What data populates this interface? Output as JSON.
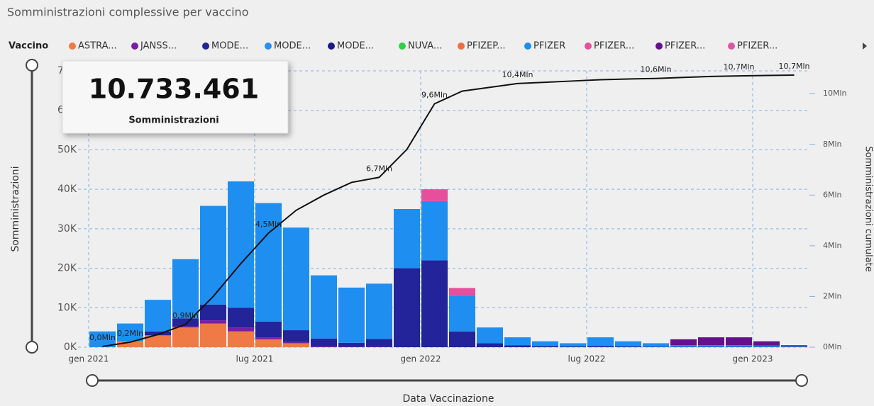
{
  "chart_data": {
    "type": "bar",
    "stacked": true,
    "title": "Somministrazioni complessive per vaccino",
    "legend_title": "Vaccino",
    "x_label": "Data Vaccinazione",
    "y_label": "Somministrazioni",
    "y2_label": "Somministrazioni cumulate",
    "card": {
      "value": "10.733.461",
      "label": "Somministrazioni"
    },
    "categories": [
      "gen 2021",
      null,
      null,
      null,
      null,
      null,
      "lug 2021",
      null,
      null,
      null,
      null,
      null,
      "gen 2022",
      null,
      null,
      null,
      null,
      null,
      "lug 2022",
      null,
      null,
      null,
      null,
      null,
      "gen 2023",
      null
    ],
    "ylim": [
      0,
      70000
    ],
    "yticks": [
      {
        "value": 0,
        "label": "0K"
      },
      {
        "value": 10000,
        "label": "10K"
      },
      {
        "value": 20000,
        "label": "20K"
      },
      {
        "value": 30000,
        "label": "30K"
      },
      {
        "value": 40000,
        "label": "40K"
      },
      {
        "value": 50000,
        "label": "50K"
      },
      {
        "value": 60000,
        "label": "60K"
      },
      {
        "value": 70000,
        "label": "70K"
      }
    ],
    "y2lim": [
      0,
      10900000
    ],
    "y2ticks": [
      {
        "value": 0,
        "label": "0Mln"
      },
      {
        "value": 2000000,
        "label": "2Mln"
      },
      {
        "value": 4000000,
        "label": "4Mln"
      },
      {
        "value": 6000000,
        "label": "6Mln"
      },
      {
        "value": 8000000,
        "label": "8Mln"
      },
      {
        "value": 10000000,
        "label": "10Mln"
      }
    ],
    "grid": true,
    "series": [
      {
        "name": "ASTRA...",
        "color": "#ef7a45",
        "values": [
          0,
          1500,
          3000,
          5000,
          6000,
          4000,
          2000,
          1000,
          0,
          0,
          0,
          0,
          0,
          0,
          0,
          0,
          0,
          0,
          0,
          0,
          0,
          0,
          0,
          0,
          0,
          0
        ]
      },
      {
        "name": "JANSS...",
        "color": "#7a1fa0",
        "values": [
          0,
          0,
          0,
          300,
          800,
          1000,
          500,
          300,
          200,
          100,
          100,
          0,
          0,
          0,
          0,
          0,
          0,
          0,
          0,
          0,
          0,
          0,
          0,
          0,
          0,
          0
        ]
      },
      {
        "name": "MODE...",
        "color": "#23239a",
        "values": [
          0,
          0,
          1000,
          2000,
          4000,
          5000,
          4000,
          3000,
          2000,
          1000,
          2000,
          20000,
          22000,
          4000,
          1000,
          500,
          300,
          200,
          300,
          200,
          100,
          100,
          100,
          100,
          100,
          0
        ]
      },
      {
        "name": "MODE...",
        "color": "#2b8fee",
        "values": [
          0,
          0,
          0,
          0,
          0,
          0,
          0,
          0,
          0,
          0,
          0,
          0,
          0,
          0,
          0,
          0,
          0,
          0,
          0,
          0,
          0,
          0,
          0,
          0,
          0,
          0
        ]
      },
      {
        "name": "MODE...",
        "color": "#1b1b80",
        "values": [
          0,
          0,
          0,
          0,
          0,
          0,
          0,
          0,
          0,
          0,
          0,
          0,
          0,
          0,
          0,
          0,
          0,
          0,
          0,
          0,
          0,
          0,
          0,
          0,
          0,
          0
        ]
      },
      {
        "name": "NUVA...",
        "color": "#2ed048",
        "values": [
          0,
          0,
          0,
          0,
          0,
          0,
          0,
          0,
          0,
          0,
          0,
          0,
          0,
          0,
          0,
          0,
          0,
          0,
          0,
          0,
          0,
          0,
          0,
          0,
          0,
          0
        ]
      },
      {
        "name": "PFIZEP...",
        "color": "#f06d3f",
        "values": [
          0,
          0,
          0,
          0,
          0,
          0,
          0,
          0,
          0,
          0,
          0,
          0,
          0,
          0,
          0,
          0,
          0,
          0,
          0,
          0,
          0,
          0,
          0,
          0,
          0,
          0
        ]
      },
      {
        "name": "PFIZER",
        "color": "#1e8ff0",
        "values": [
          4000,
          4500,
          8000,
          15000,
          25000,
          32000,
          30000,
          26000,
          16000,
          14000,
          14000,
          15000,
          15000,
          9000,
          4000,
          2000,
          1200,
          800,
          2200,
          1300,
          900,
          400,
          400,
          400,
          300,
          200
        ]
      },
      {
        "name": "PFIZER...",
        "color": "#e64f9c",
        "values": [
          0,
          0,
          0,
          0,
          0,
          0,
          0,
          0,
          0,
          0,
          0,
          0,
          3000,
          2000,
          0,
          0,
          0,
          0,
          0,
          0,
          0,
          0,
          0,
          0,
          0,
          0
        ]
      },
      {
        "name": "PFIZER...",
        "color": "#65108c",
        "values": [
          0,
          0,
          0,
          0,
          0,
          0,
          0,
          0,
          0,
          0,
          0,
          0,
          0,
          0,
          0,
          0,
          0,
          0,
          0,
          0,
          0,
          1500,
          2000,
          2000,
          1100,
          300
        ]
      },
      {
        "name": "PFIZER...",
        "color": "#dc58a2",
        "values": [
          0,
          0,
          0,
          0,
          0,
          0,
          0,
          0,
          0,
          0,
          0,
          0,
          0,
          0,
          0,
          0,
          0,
          0,
          0,
          0,
          0,
          0,
          0,
          0,
          0,
          0
        ]
      }
    ],
    "cumulative": {
      "type": "line",
      "axis": "y2",
      "color": "#111111",
      "values": [
        30000,
        200000,
        500000,
        900000,
        2000000,
        3300000,
        4500000,
        5400000,
        6000000,
        6500000,
        6700000,
        7800000,
        9600000,
        10100000,
        10250000,
        10400000,
        10450000,
        10500000,
        10550000,
        10580000,
        10600000,
        10640000,
        10680000,
        10700000,
        10720000,
        10733461
      ],
      "value_labels": [
        "0,0Mln",
        "0,2Mln",
        null,
        "0,9Mln",
        null,
        null,
        "4,5Mln",
        null,
        null,
        null,
        "6,7Mln",
        null,
        "9,6Mln",
        null,
        null,
        "10,4Mln",
        null,
        null,
        null,
        null,
        "10,6Mln",
        null,
        null,
        "10,7Mln",
        null,
        "10,7Mln"
      ]
    }
  }
}
